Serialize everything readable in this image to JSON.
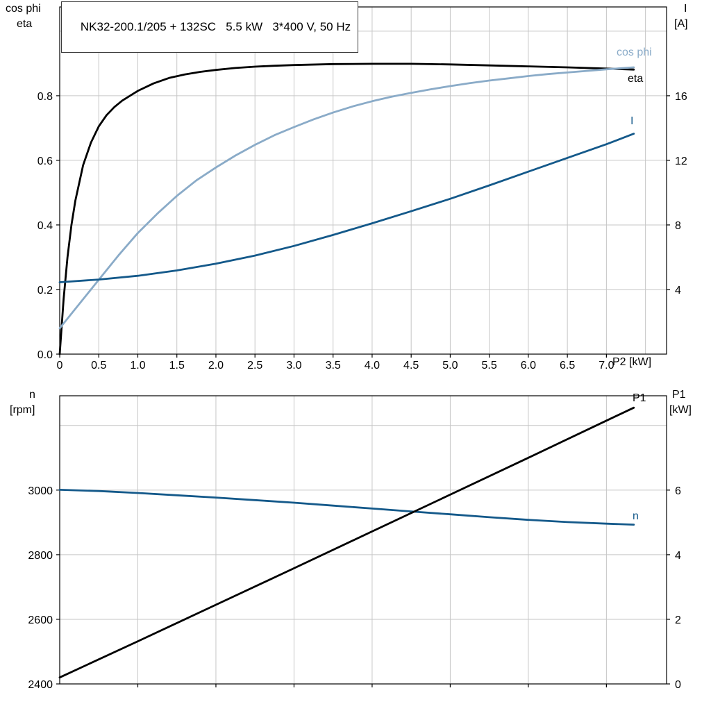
{
  "header": {
    "title": "NK32-200.1/205 + 132SC   5.5 kW   3*400 V, 50 Hz"
  },
  "colors": {
    "grid": "#c6c6c6",
    "axis": "#000000",
    "eta": "#000000",
    "cos_phi": "#8aabc8",
    "current": "#14598a",
    "speed": "#14598a",
    "p1": "#000000"
  },
  "chart_data": [
    {
      "type": "line",
      "title": "NK32-200.1/205 + 132SC   5.5 kW   3*400 V, 50 Hz",
      "axes": {
        "x": {
          "label": "P2 [kW]",
          "range": [
            0,
            7.77
          ],
          "ticks": [
            "0",
            "0.5",
            "1.0",
            "1.5",
            "2.0",
            "2.5",
            "3.0",
            "3.5",
            "4.0",
            "4.5",
            "5.0",
            "5.5",
            "6.0",
            "6.5",
            "7.0"
          ],
          "tick_values": [
            0,
            0.5,
            1.0,
            1.5,
            2.0,
            2.5,
            3.0,
            3.5,
            4.0,
            4.5,
            5.0,
            5.5,
            6.0,
            6.5,
            7.0
          ],
          "grid_values": [
            0.5,
            1.0,
            1.5,
            2.0,
            2.5,
            3.0,
            3.5,
            4.0,
            4.5,
            5.0,
            5.5,
            6.0,
            6.5,
            7.0,
            7.5
          ]
        },
        "left": {
          "labels": [
            "cos phi",
            "eta"
          ],
          "range": [
            0,
            1.075
          ],
          "ticks": [
            "0.0",
            "0.2",
            "0.4",
            "0.6",
            "0.8"
          ],
          "tick_values": [
            0,
            0.2,
            0.4,
            0.6,
            0.8
          ],
          "grid_values": [
            0.2,
            0.4,
            0.6,
            0.8,
            1.0
          ]
        },
        "right": {
          "labels": [
            "I",
            "[A]"
          ],
          "range": [
            0,
            21.5
          ],
          "ticks": [
            "4",
            "8",
            "12",
            "16"
          ],
          "tick_values": [
            4,
            8,
            12,
            16
          ]
        }
      },
      "series": [
        {
          "key": "eta",
          "label": "eta",
          "axis": "left",
          "color": "#000000",
          "x": [
            0,
            0.05,
            0.1,
            0.15,
            0.2,
            0.3,
            0.4,
            0.5,
            0.6,
            0.7,
            0.8,
            0.9,
            1.0,
            1.2,
            1.4,
            1.6,
            1.8,
            2.0,
            2.25,
            2.5,
            2.75,
            3.0,
            3.5,
            4.0,
            4.5,
            5.0,
            5.5,
            6.0,
            6.5,
            7.0,
            7.35
          ],
          "y": [
            0,
            0.17,
            0.3,
            0.4,
            0.475,
            0.585,
            0.655,
            0.705,
            0.74,
            0.765,
            0.785,
            0.8,
            0.815,
            0.838,
            0.855,
            0.866,
            0.874,
            0.88,
            0.886,
            0.89,
            0.893,
            0.895,
            0.898,
            0.899,
            0.899,
            0.897,
            0.894,
            0.891,
            0.888,
            0.884,
            0.881
          ]
        },
        {
          "key": "cos-phi",
          "label": "cos phi",
          "axis": "left",
          "color": "#8aabc8",
          "x": [
            0,
            0.25,
            0.5,
            0.75,
            1.0,
            1.25,
            1.5,
            1.75,
            2.0,
            2.25,
            2.5,
            2.75,
            3.0,
            3.25,
            3.5,
            3.75,
            4.0,
            4.25,
            4.5,
            4.75,
            5.0,
            5.25,
            5.5,
            5.75,
            6.0,
            6.25,
            6.5,
            6.75,
            7.0,
            7.35
          ],
          "y": [
            0.08,
            0.155,
            0.23,
            0.305,
            0.375,
            0.435,
            0.49,
            0.538,
            0.578,
            0.615,
            0.648,
            0.678,
            0.703,
            0.727,
            0.748,
            0.767,
            0.783,
            0.797,
            0.809,
            0.82,
            0.83,
            0.839,
            0.847,
            0.854,
            0.861,
            0.867,
            0.872,
            0.877,
            0.882,
            0.888
          ]
        },
        {
          "key": "current",
          "label": "I",
          "axis": "right",
          "color": "#14598a",
          "x": [
            0,
            0.5,
            1.0,
            1.5,
            2.0,
            2.5,
            3.0,
            3.5,
            4.0,
            4.5,
            5.0,
            5.5,
            6.0,
            6.5,
            7.0,
            7.35
          ],
          "y": [
            4.45,
            4.62,
            4.85,
            5.18,
            5.6,
            6.1,
            6.7,
            7.38,
            8.1,
            8.85,
            9.62,
            10.45,
            11.3,
            12.15,
            13.0,
            13.65
          ]
        }
      ]
    },
    {
      "type": "line",
      "axes": {
        "x": {
          "label": "",
          "range": [
            0,
            7.77
          ],
          "ticks": [],
          "tick_values": [
            1,
            2,
            3,
            4,
            5,
            6,
            7
          ],
          "grid_values": [
            1,
            2,
            3,
            4,
            5,
            6,
            7
          ]
        },
        "left": {
          "labels": [
            "n",
            "[rpm]"
          ],
          "range": [
            2400,
            3292
          ],
          "ticks": [
            "2400",
            "2600",
            "2800",
            "3000"
          ],
          "tick_values": [
            2400,
            2600,
            2800,
            3000
          ],
          "grid_values": [
            2600,
            2800,
            3000,
            3200
          ]
        },
        "right": {
          "labels": [
            "P1",
            "[kW]"
          ],
          "range": [
            0,
            8.92
          ],
          "ticks": [
            "0",
            "2",
            "4",
            "6"
          ],
          "tick_values": [
            0,
            2,
            4,
            6
          ]
        }
      },
      "series": [
        {
          "key": "speed",
          "label": "n",
          "axis": "left",
          "color": "#14598a",
          "x": [
            0,
            0.5,
            1,
            1.5,
            2,
            2.5,
            3,
            3.5,
            4,
            4.5,
            5,
            5.5,
            6,
            6.5,
            7,
            7.35
          ],
          "y": [
            3001,
            2997,
            2991,
            2984,
            2977,
            2969,
            2961,
            2952,
            2943,
            2934,
            2925,
            2916,
            2908,
            2901,
            2896,
            2893
          ]
        },
        {
          "key": "p1",
          "label": "P1",
          "axis": "right",
          "color": "#000000",
          "x": [
            0,
            1,
            2,
            3,
            4,
            5,
            6,
            7,
            7.35
          ],
          "y": [
            0.2,
            1.32,
            2.45,
            3.58,
            4.72,
            5.86,
            7.0,
            8.15,
            8.55
          ]
        }
      ]
    }
  ]
}
